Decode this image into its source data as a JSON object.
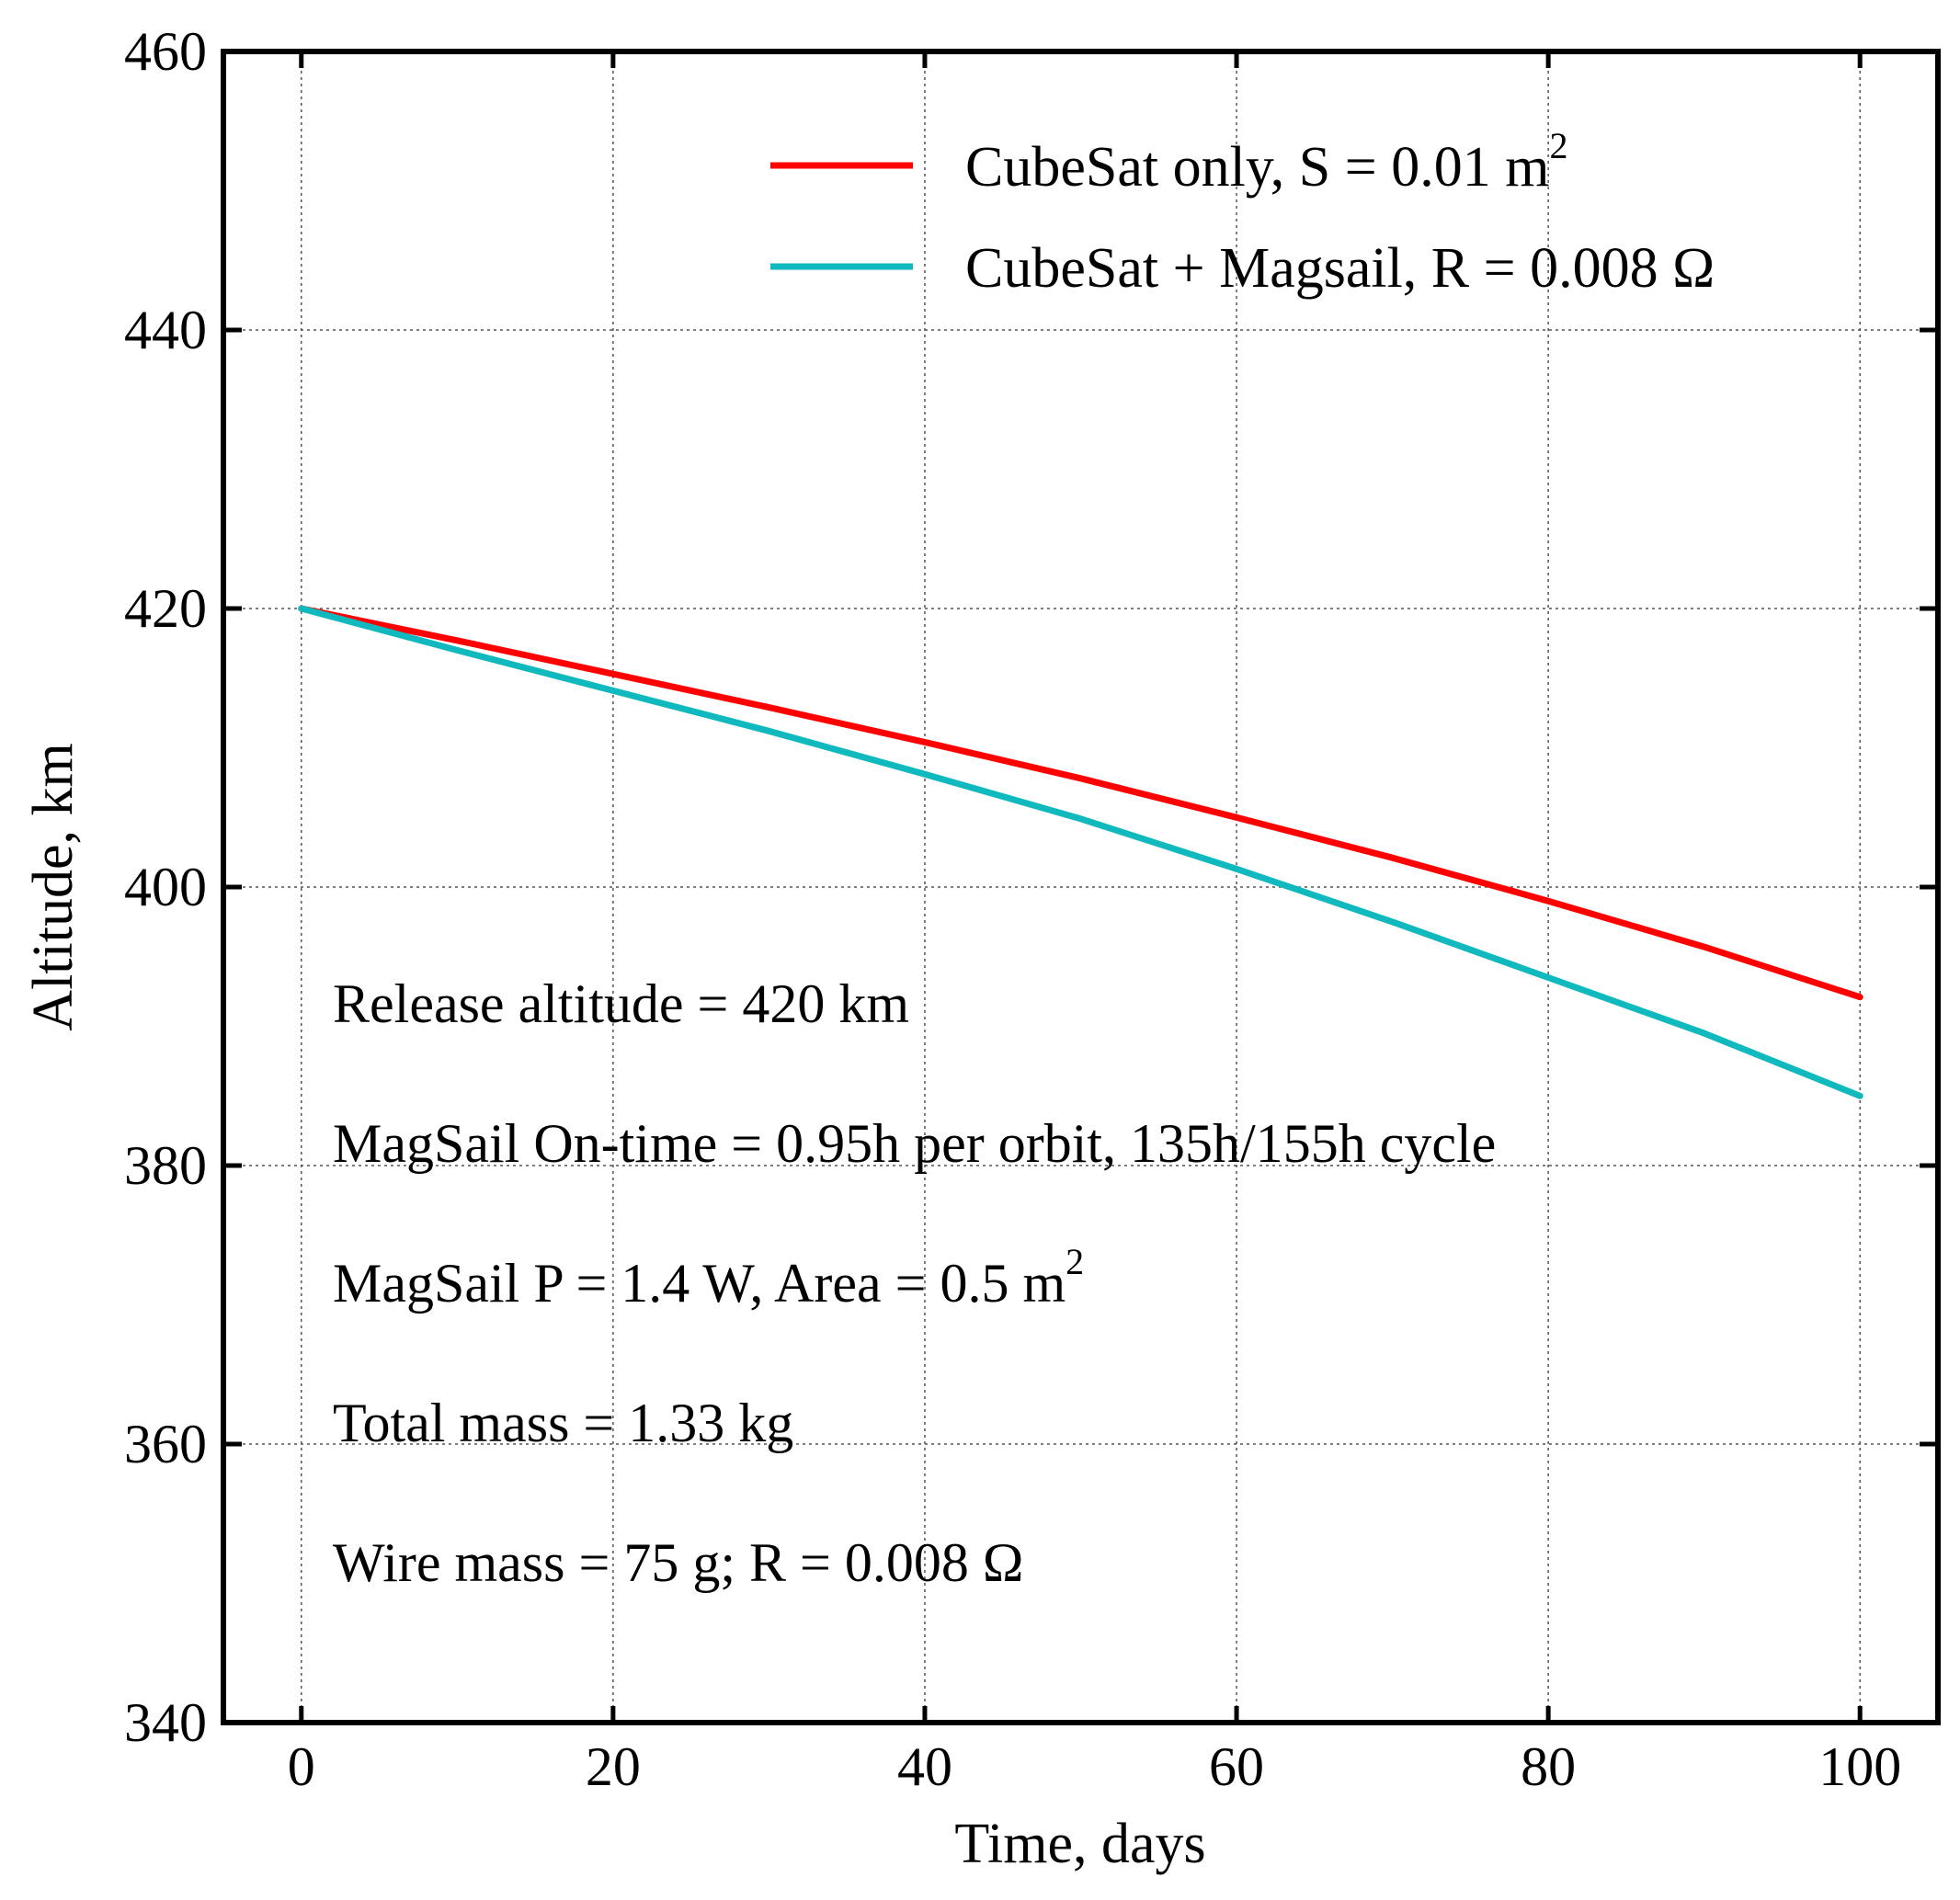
{
  "chart_data": {
    "type": "line",
    "xlabel": "Time, days",
    "ylabel": "Altitude, km",
    "xlim": [
      -5,
      105
    ],
    "ylim": [
      340,
      460
    ],
    "xticks": [
      0,
      20,
      40,
      60,
      80,
      100
    ],
    "yticks": [
      340,
      360,
      380,
      400,
      420,
      440,
      460
    ],
    "grid": true,
    "legend_position": "top-right",
    "series": [
      {
        "name": "CubeSat only, S = 0.01 m",
        "name_sup": "2",
        "color": "#ff0000",
        "x": [
          0,
          10,
          20,
          30,
          40,
          50,
          60,
          70,
          80,
          90,
          100
        ],
        "y": [
          420,
          417.7,
          415.3,
          412.9,
          410.4,
          407.8,
          405.0,
          402.1,
          399.0,
          395.7,
          392.1
        ]
      },
      {
        "name": "CubeSat + Magsail, R = 0.008 Ω",
        "name_sup": "",
        "color": "#10b9bd",
        "x": [
          0,
          10,
          20,
          30,
          40,
          50,
          60,
          70,
          80,
          90,
          100
        ],
        "y": [
          420,
          417.0,
          414.1,
          411.2,
          408.1,
          404.9,
          401.3,
          397.5,
          393.5,
          389.5,
          385.0
        ]
      }
    ],
    "annotations": [
      {
        "text": "Release altitude = 420 km",
        "sup": ""
      },
      {
        "text": "MagSail On-time = 0.95h per orbit, 135h/155h cycle",
        "sup": ""
      },
      {
        "text": "MagSail P = 1.4 W, Area = 0.5 m",
        "sup": "2"
      },
      {
        "text": "Total mass = 1.33 kg",
        "sup": ""
      },
      {
        "text": "Wire mass = 75 g; R = 0.008 Ω",
        "sup": ""
      }
    ]
  }
}
